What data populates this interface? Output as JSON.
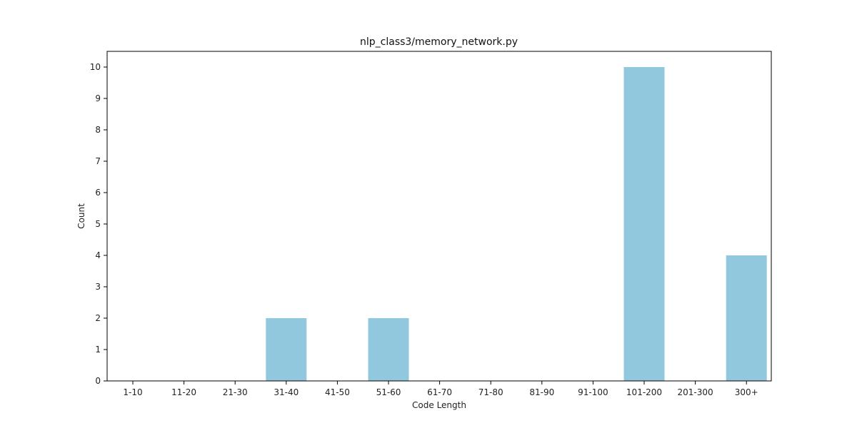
{
  "chart_data": {
    "type": "bar",
    "title": "nlp_class3/memory_network.py",
    "xlabel": "Code Length",
    "ylabel": "Count",
    "categories": [
      "1-10",
      "11-20",
      "21-30",
      "31-40",
      "41-50",
      "51-60",
      "61-70",
      "71-80",
      "81-90",
      "91-100",
      "101-200",
      "201-300",
      "300+"
    ],
    "values": [
      0,
      0,
      0,
      2,
      0,
      2,
      0,
      0,
      0,
      0,
      10,
      0,
      4
    ],
    "ylim": [
      0,
      10.5
    ],
    "yticks": [
      0,
      1,
      2,
      3,
      4,
      5,
      6,
      7,
      8,
      9,
      10
    ],
    "grid": false,
    "bar_color": "#92c8dd"
  }
}
